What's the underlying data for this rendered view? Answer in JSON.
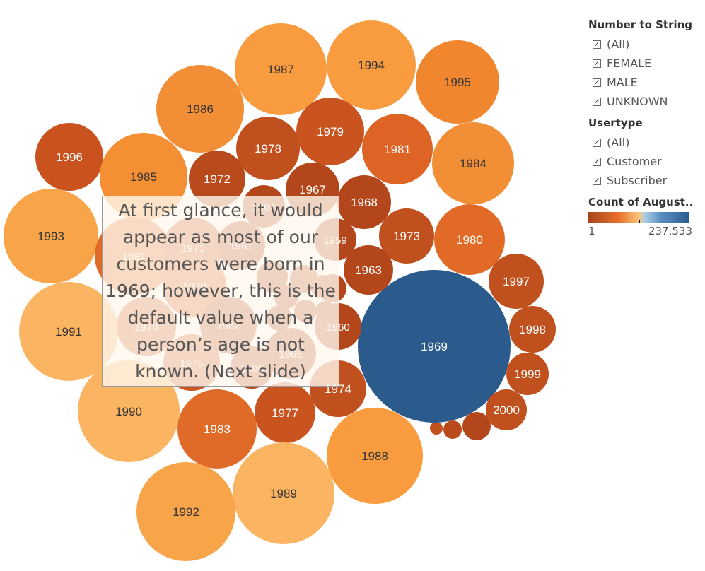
{
  "chart_data": {
    "type": "packed-bubble",
    "size_measure": "Count of August..",
    "color_range": {
      "min": 1,
      "max": 237533,
      "min_label": "1",
      "max_label": "237,533"
    },
    "bubbles": [
      {
        "label": "1969",
        "color": "#2b5a8c"
      },
      {
        "label": "1987",
        "color": "#f89c3f"
      },
      {
        "label": "1994",
        "color": "#f89c3f"
      },
      {
        "label": "1995",
        "color": "#f0872f"
      },
      {
        "label": "1986",
        "color": "#f28f36"
      },
      {
        "label": "1979",
        "color": "#c9541f"
      },
      {
        "label": "1978",
        "color": "#c0501d"
      },
      {
        "label": "1981",
        "color": "#dd6424"
      },
      {
        "label": "1984",
        "color": "#f28f36"
      },
      {
        "label": "1996",
        "color": "#c9521e"
      },
      {
        "label": "1985",
        "color": "#f48f34"
      },
      {
        "label": "1972",
        "color": "#b94a1c"
      },
      {
        "label": "1967",
        "color": "#b4461b"
      },
      {
        "label": "1968",
        "color": "#b4461b"
      },
      {
        "label": "1993",
        "color": "#f8a54a"
      },
      {
        "label": "1973",
        "color": "#c0501d"
      },
      {
        "label": "1980",
        "color": "#e26a27"
      },
      {
        "label": "1963",
        "color": "#b4461b"
      },
      {
        "label": "1997",
        "color": "#c0501d"
      },
      {
        "label": "1998",
        "color": "#c0501d"
      },
      {
        "label": "1991",
        "color": "#fbb562"
      },
      {
        "label": "1999",
        "color": "#c0501d"
      },
      {
        "label": "2000",
        "color": "#c0501d"
      },
      {
        "label": "1990",
        "color": "#fbb562"
      },
      {
        "label": "1974",
        "color": "#c0501d"
      },
      {
        "label": "1977",
        "color": "#c9541f"
      },
      {
        "label": "1983",
        "color": "#e06a27"
      },
      {
        "label": "1988",
        "color": "#f89c3f"
      },
      {
        "label": "1989",
        "color": "#fbb562"
      },
      {
        "label": "1992",
        "color": "#f8a54a"
      },
      {
        "label": "1982",
        "color": "#e06a27"
      },
      {
        "label": "1971",
        "color": "#c9541f"
      },
      {
        "label": "1970",
        "color": "#d05a22"
      },
      {
        "label": "1976",
        "color": "#c9541f"
      },
      {
        "label": "1975",
        "color": "#c9541f"
      },
      {
        "label": "1962",
        "color": "#b4461b"
      },
      {
        "label": "1961",
        "color": "#b4461b"
      },
      {
        "label": "1965",
        "color": "#b4461b"
      },
      {
        "label": "1964",
        "color": "#b4461b"
      },
      {
        "label": "1966",
        "color": "#b4461b"
      },
      {
        "label": "1959",
        "color": "#b4461b"
      },
      {
        "label": "1960",
        "color": "#b4461b"
      }
    ],
    "small_bubbles_colors": [
      "#b4461b",
      "#b94a1c",
      "#c0501d",
      "#b4461b",
      "#b94a1c",
      "#b4461b",
      "#c0501d",
      "#b4461b",
      "#a8431c",
      "#b4461b",
      "#b4461b",
      "#a8431c"
    ]
  },
  "annotation": {
    "text": "At first glance, it would appear as most of our customers were born in 1969; however, this is the default value when a person’s age is not known. (Next slide)"
  },
  "filters": {
    "number_to_string": {
      "title": "Number to String",
      "items": [
        {
          "label": "(All)",
          "checked": true
        },
        {
          "label": "FEMALE",
          "checked": true
        },
        {
          "label": "MALE",
          "checked": true
        },
        {
          "label": "UNKNOWN",
          "checked": true
        }
      ]
    },
    "usertype": {
      "title": "Usertype",
      "items": [
        {
          "label": "(All)",
          "checked": true
        },
        {
          "label": "Customer",
          "checked": true
        },
        {
          "label": "Subscriber",
          "checked": true
        }
      ]
    }
  },
  "color_legend": {
    "title": "Count of August..",
    "min_label": "1",
    "max_label": "237,533"
  },
  "check_glyph": "✓"
}
